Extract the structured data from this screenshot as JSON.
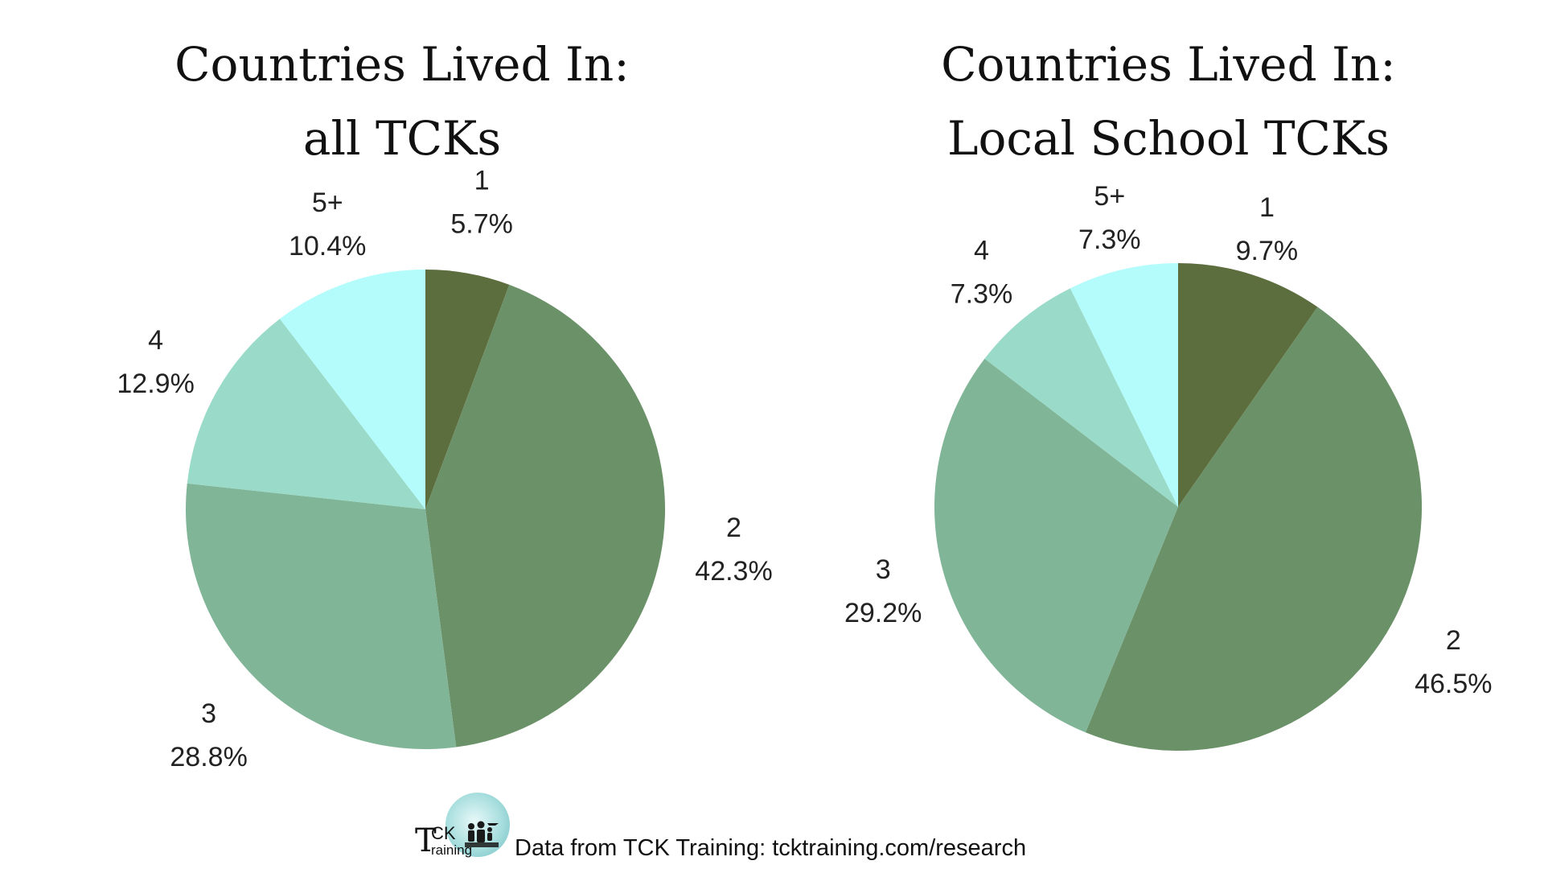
{
  "chart_data": [
    {
      "type": "pie",
      "title": [
        "Countries Lived In:",
        "all TCKs"
      ],
      "categories": [
        "1",
        "2",
        "3",
        "4",
        "5+"
      ],
      "values": [
        5.7,
        42.3,
        28.8,
        12.9,
        10.4
      ],
      "value_labels": [
        "5.7%",
        "42.3%",
        "28.8%",
        "12.9%",
        "10.4%"
      ],
      "colors": [
        "#5d6e3e",
        "#6b9168",
        "#80b598",
        "#99dbc8",
        "#b4fcfc"
      ],
      "start": "12 o'clock",
      "direction": "clockwise",
      "legend": "none"
    },
    {
      "type": "pie",
      "title": [
        "Countries Lived In:",
        "Local School TCKs"
      ],
      "categories": [
        "1",
        "2",
        "3",
        "4",
        "5+"
      ],
      "values": [
        9.7,
        46.5,
        29.2,
        7.3,
        7.3
      ],
      "value_labels": [
        "9.7%",
        "46.5%",
        "29.2%",
        "7.3%",
        "7.3%"
      ],
      "colors": [
        "#5d6e3e",
        "#6b9168",
        "#80b598",
        "#99dbc8",
        "#b4fcfc"
      ],
      "start": "12 o'clock",
      "direction": "clockwise",
      "legend": "none"
    }
  ],
  "footer": {
    "logo_t": "T",
    "logo_ck": "CK",
    "logo_training": "raining",
    "text": "Data from TCK Training: tcktraining.com/research"
  }
}
